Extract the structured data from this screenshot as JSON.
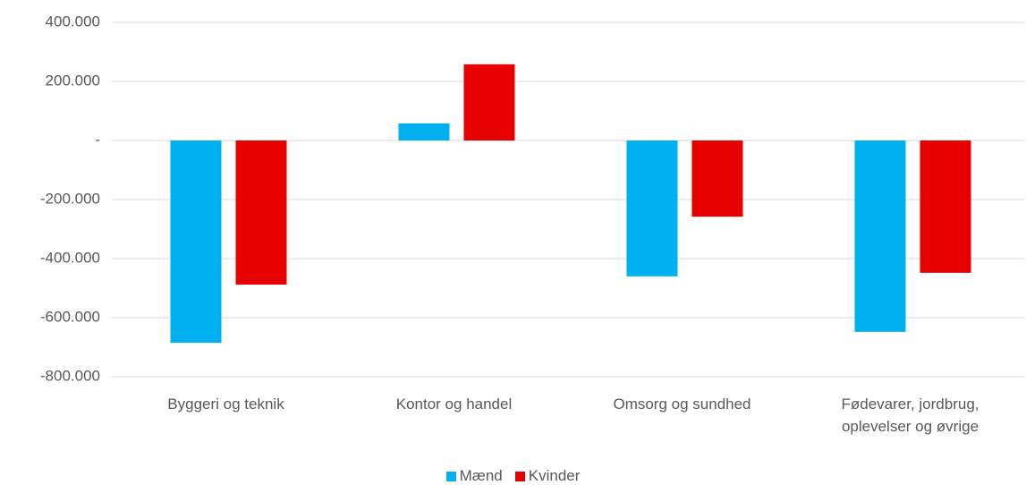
{
  "chart_data": {
    "type": "bar",
    "categories": [
      "Byggeri og teknik",
      "Kontor og handel",
      "Omsorg og sundhed",
      "Fødevarer, jordbrug, oplevelser og øvrige"
    ],
    "series": [
      {
        "name": "Mænd",
        "color": "#00b0f0",
        "values": [
          -685000,
          58000,
          -460000,
          -648000
        ]
      },
      {
        "name": "Kvinder",
        "color": "#e60000",
        "values": [
          -488000,
          258000,
          -258000,
          -448000
        ]
      }
    ],
    "ylim": [
      -800000,
      400000
    ],
    "yticks": [
      {
        "value": -800000,
        "label": "-800.000"
      },
      {
        "value": -600000,
        "label": "-600.000"
      },
      {
        "value": -400000,
        "label": "-400.000"
      },
      {
        "value": -200000,
        "label": "-200.000"
      },
      {
        "value": 0,
        "label": "-"
      },
      {
        "value": 200000,
        "label": "200.000"
      },
      {
        "value": 400000,
        "label": "400.000"
      }
    ],
    "grid": true,
    "legend": "bottom"
  }
}
